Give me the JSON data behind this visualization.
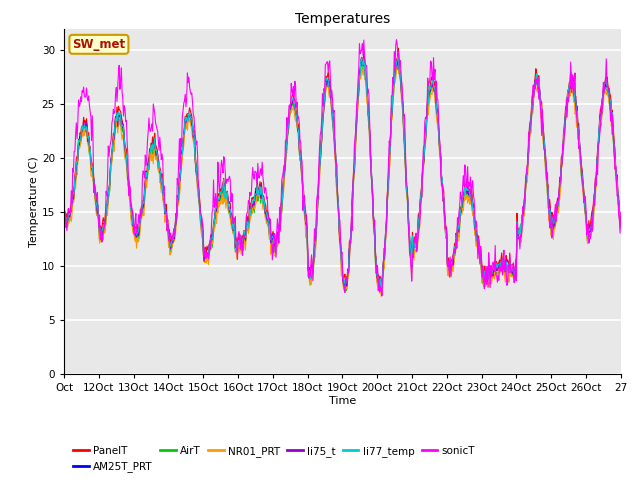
{
  "title": "Temperatures",
  "xlabel": "Time",
  "ylabel": "Temperature (C)",
  "ylim": [
    0,
    32
  ],
  "yticks": [
    0,
    5,
    10,
    15,
    20,
    25,
    30
  ],
  "x_labels": [
    "Oct",
    "12Oct",
    "13Oct",
    "14Oct",
    "15Oct",
    "16Oct",
    "17Oct",
    "18Oct",
    "19Oct",
    "20Oct",
    "21Oct",
    "22Oct",
    "23Oct",
    "24Oct",
    "25Oct",
    "26Oct",
    "27"
  ],
  "series": [
    {
      "name": "PanelT",
      "color": "#ff0000"
    },
    {
      "name": "AM25T_PRT",
      "color": "#0000ff"
    },
    {
      "name": "AirT",
      "color": "#00cc00"
    },
    {
      "name": "NR01_PRT",
      "color": "#ff9900"
    },
    {
      "name": "li75_t",
      "color": "#9900cc"
    },
    {
      "name": "li77_temp",
      "color": "#00cccc"
    },
    {
      "name": "sonicT",
      "color": "#ff00ff"
    }
  ],
  "annotation_text": "SW_met",
  "annotation_color": "#aa1100",
  "annotation_bg": "#ffffcc",
  "annotation_border": "#cc9900",
  "bg_color": "#e8e8e8",
  "fig_bg": "#ffffff",
  "grid_color": "#ffffff",
  "linewidth": 0.8,
  "title_fontsize": 10,
  "tick_fontsize": 7.5,
  "legend_fontsize": 7.5,
  "n_days": 16,
  "day_peaks": [
    23,
    24,
    21,
    24,
    17,
    17,
    25,
    27,
    29,
    29,
    27,
    17,
    10,
    27,
    27,
    27
  ],
  "day_troughs": [
    14,
    13,
    13,
    12,
    11,
    12,
    12,
    9,
    8,
    8,
    12,
    10,
    9,
    13,
    14,
    13
  ]
}
